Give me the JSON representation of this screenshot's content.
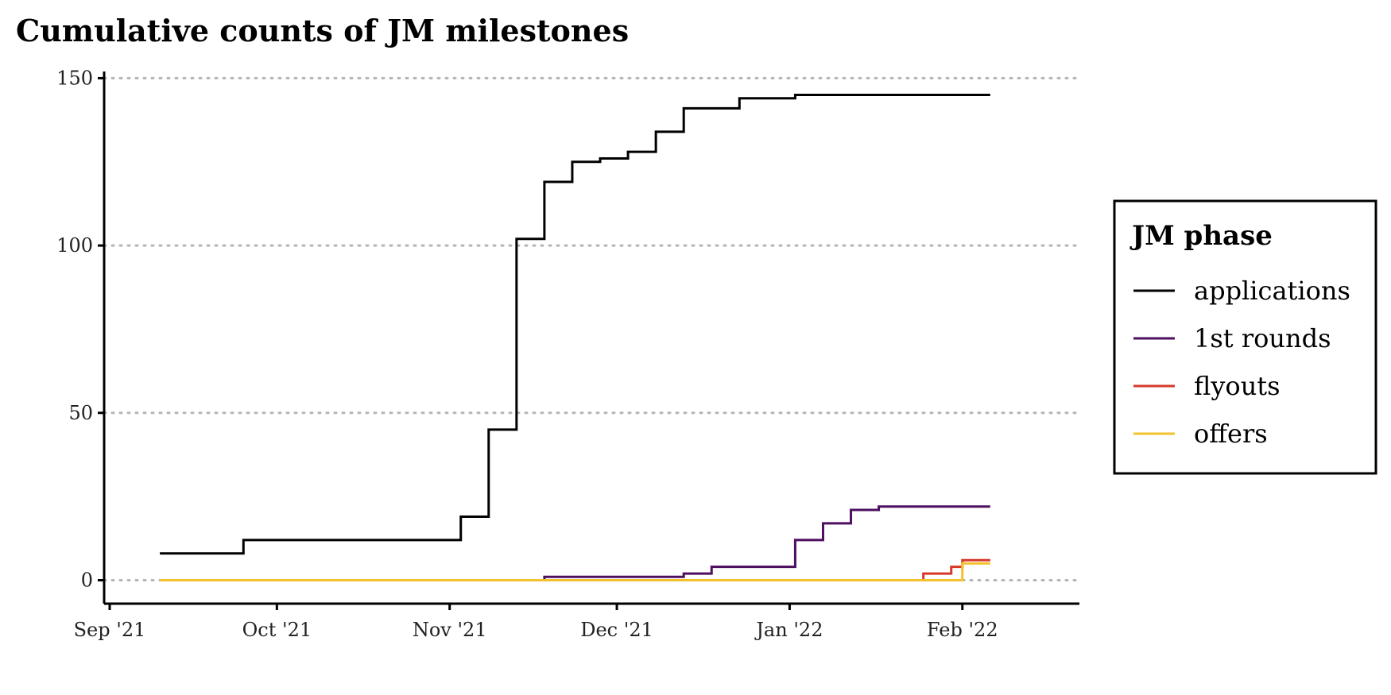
{
  "chart_data": {
    "type": "line",
    "step": true,
    "title": "Cumulative counts of JM milestones",
    "xlabel": "",
    "ylabel": "",
    "ylim": [
      -7,
      152
    ],
    "yticks": [
      0,
      50,
      100,
      150
    ],
    "ytick_labels": [
      "0",
      "50",
      "100",
      "150"
    ],
    "xlim": [
      "2021-08-31",
      "2022-02-22"
    ],
    "xticks": [
      "2021-09-01",
      "2021-10-01",
      "2021-11-01",
      "2021-12-01",
      "2022-01-01",
      "2022-02-01"
    ],
    "xtick_labels": [
      "Sep '21",
      "Oct '21",
      "Nov '21",
      "Dec '21",
      "Jan '22",
      "Feb '22"
    ],
    "grid": {
      "y": "dotted",
      "x": false
    },
    "legend": {
      "title": "JM phase",
      "position": "right"
    },
    "series": [
      {
        "name": "applications",
        "color": "#000000",
        "points": [
          [
            "2021-09-10",
            8
          ],
          [
            "2021-09-25",
            12
          ],
          [
            "2021-11-03",
            19
          ],
          [
            "2021-11-08",
            45
          ],
          [
            "2021-11-13",
            102
          ],
          [
            "2021-11-18",
            119
          ],
          [
            "2021-11-23",
            125
          ],
          [
            "2021-11-28",
            126
          ],
          [
            "2021-12-03",
            128
          ],
          [
            "2021-12-08",
            134
          ],
          [
            "2021-12-13",
            141
          ],
          [
            "2021-12-23",
            144
          ],
          [
            "2022-01-02",
            145
          ],
          [
            "2022-02-06",
            145
          ]
        ]
      },
      {
        "name": "1st rounds",
        "color": "#4d0f5f",
        "points": [
          [
            "2021-09-10",
            0
          ],
          [
            "2021-11-18",
            1
          ],
          [
            "2021-12-13",
            2
          ],
          [
            "2021-12-18",
            4
          ],
          [
            "2022-01-02",
            12
          ],
          [
            "2022-01-07",
            17
          ],
          [
            "2022-01-12",
            21
          ],
          [
            "2022-01-17",
            22
          ],
          [
            "2022-02-06",
            22
          ]
        ]
      },
      {
        "name": "flyouts",
        "color": "#d6392a",
        "points": [
          [
            "2021-09-10",
            0
          ],
          [
            "2022-01-25",
            2
          ],
          [
            "2022-01-30",
            4
          ],
          [
            "2022-02-01",
            6
          ],
          [
            "2022-02-06",
            6
          ]
        ]
      },
      {
        "name": "offers",
        "color": "#f2c12e",
        "points": [
          [
            "2021-09-10",
            0
          ],
          [
            "2022-02-01",
            5
          ],
          [
            "2022-02-06",
            5
          ]
        ]
      }
    ]
  }
}
